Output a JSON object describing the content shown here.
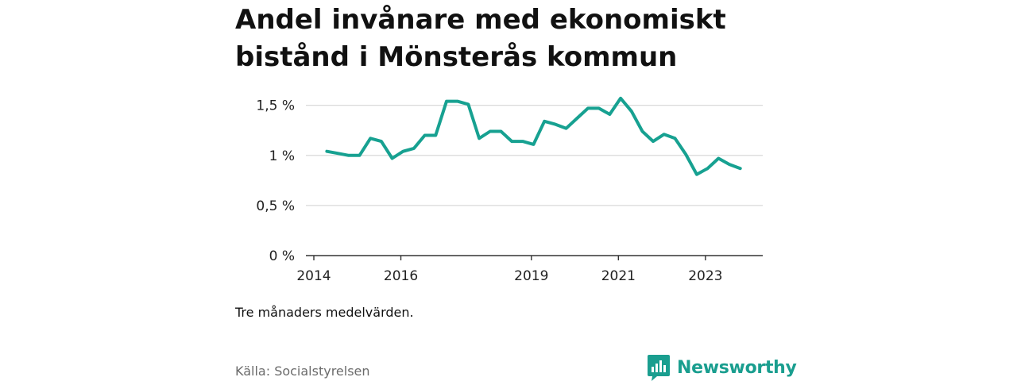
{
  "title": "Andel invånare med ekonomiskt bistånd i Mönsterås kommun",
  "note": "Tre månaders medelvärden.",
  "source": "Källa: Socialstyrelsen",
  "brand": {
    "name": "Newsworthy",
    "icon": "newsworthy-logo-icon"
  },
  "colors": {
    "line": "#17a191",
    "grid": "#d9d9d9",
    "axis": "#333333",
    "brand": "#1a9e8f"
  },
  "chart_data": {
    "type": "line",
    "title": "Andel invånare med ekonomiskt bistånd i Mönsterås kommun",
    "xlabel": "",
    "ylabel": "",
    "ylim": [
      0,
      1.6
    ],
    "xlim": [
      2014,
      2024.5
    ],
    "grid": true,
    "legend": "none",
    "x_ticks": [
      {
        "value": 2014,
        "label": "2014"
      },
      {
        "value": 2016,
        "label": "2016"
      },
      {
        "value": 2019,
        "label": "2019"
      },
      {
        "value": 2021,
        "label": "2021"
      },
      {
        "value": 2023,
        "label": "2023"
      }
    ],
    "y_ticks": [
      {
        "value": 0,
        "label": "0 %"
      },
      {
        "value": 0.5,
        "label": "0,5 %"
      },
      {
        "value": 1,
        "label": "1 %"
      },
      {
        "value": 1.5,
        "label": "1,5 %"
      }
    ],
    "series": [
      {
        "x": [
          2014.3,
          2014.55,
          2014.8,
          2015.05,
          2015.3,
          2015.55,
          2015.8,
          2016.05,
          2016.3,
          2016.55,
          2016.8,
          2017.05,
          2017.3,
          2017.55,
          2017.8,
          2018.05,
          2018.3,
          2018.55,
          2018.8,
          2019.05,
          2019.3,
          2019.55,
          2019.8,
          2020.05,
          2020.3,
          2020.55,
          2020.8,
          2021.05,
          2021.3,
          2021.55,
          2021.8,
          2022.05,
          2022.3,
          2022.55,
          2022.8,
          2023.05,
          2023.3,
          2023.55,
          2023.8
        ],
        "values": [
          1.04,
          1.02,
          1.0,
          1.0,
          1.17,
          1.14,
          0.97,
          1.04,
          1.07,
          1.2,
          1.2,
          1.54,
          1.54,
          1.51,
          1.17,
          1.24,
          1.24,
          1.14,
          1.14,
          1.11,
          1.34,
          1.31,
          1.27,
          1.37,
          1.47,
          1.47,
          1.41,
          1.57,
          1.44,
          1.24,
          1.14,
          1.21,
          1.17,
          1.01,
          0.81,
          0.87,
          0.97,
          0.91,
          0.87
        ]
      }
    ]
  }
}
